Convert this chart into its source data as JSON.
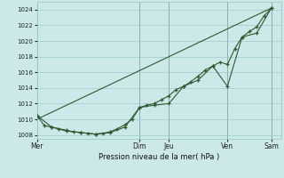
{
  "background_color": "#cce8e8",
  "grid_color": "#99cccc",
  "line_color": "#2d5a2d",
  "marker_color": "#2d5a2d",
  "xlabel": "Pression niveau de la mer( hPa )",
  "ylim": [
    1007.5,
    1025.0
  ],
  "yticks": [
    1008,
    1010,
    1012,
    1014,
    1016,
    1018,
    1020,
    1022,
    1024
  ],
  "xtick_labels": [
    "Mer",
    "Dim",
    "Jeu",
    "Ven",
    "Sam"
  ],
  "xtick_positions": [
    0,
    42,
    54,
    78,
    96
  ],
  "xlim": [
    0,
    100
  ],
  "vline_positions": [
    0,
    42,
    54,
    78,
    96
  ],
  "line1_x": [
    0,
    3,
    6,
    9,
    12,
    15,
    18,
    21,
    24,
    27,
    30,
    33,
    36,
    39,
    42,
    45,
    48,
    51,
    54,
    57,
    60,
    63,
    66,
    69,
    72,
    75,
    78,
    81,
    84,
    87,
    90,
    93,
    96
  ],
  "line1_y": [
    1010.5,
    1009.2,
    1009.0,
    1008.8,
    1008.6,
    1008.4,
    1008.3,
    1008.2,
    1008.1,
    1008.2,
    1008.4,
    1008.8,
    1009.3,
    1010.0,
    1011.5,
    1011.8,
    1012.0,
    1012.5,
    1013.0,
    1013.8,
    1014.2,
    1014.8,
    1015.5,
    1016.3,
    1016.8,
    1017.3,
    1017.0,
    1019.0,
    1020.5,
    1021.2,
    1021.8,
    1023.2,
    1024.2
  ],
  "line2_x": [
    0,
    6,
    12,
    18,
    24,
    30,
    36,
    42,
    48,
    54,
    60,
    66,
    72,
    78,
    84,
    90,
    96
  ],
  "line2_y": [
    1010.5,
    1009.0,
    1008.5,
    1008.3,
    1008.1,
    1008.3,
    1009.0,
    1011.5,
    1011.8,
    1012.0,
    1014.2,
    1015.0,
    1016.8,
    1014.2,
    1020.5,
    1021.0,
    1024.2
  ],
  "line3_x": [
    0,
    96
  ],
  "line3_y": [
    1010.0,
    1024.2
  ],
  "figsize": [
    3.2,
    2.0
  ],
  "dpi": 100
}
